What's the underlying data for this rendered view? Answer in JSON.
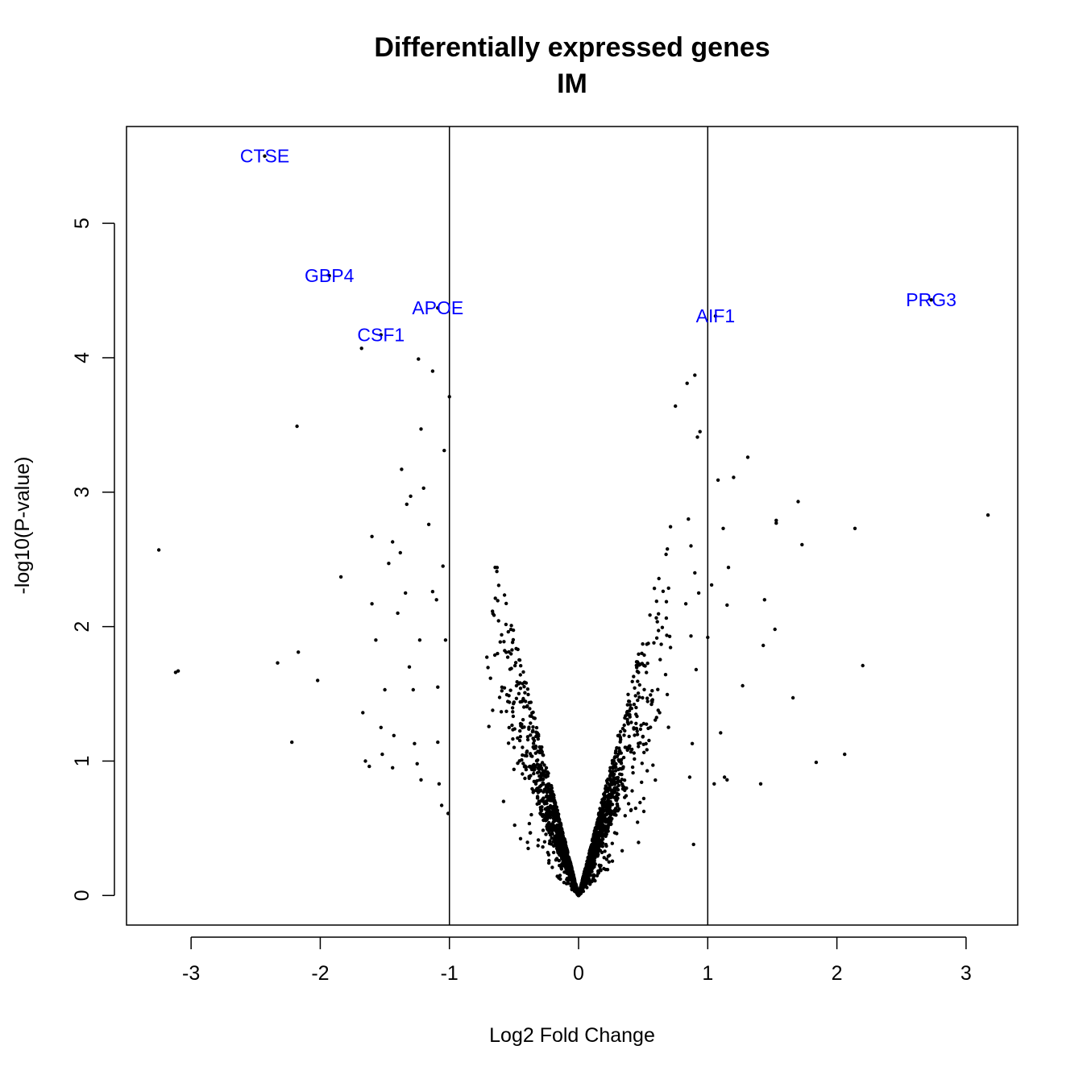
{
  "chart_data": {
    "type": "scatter",
    "title": "Differentially expressed genes",
    "subtitle": "IM",
    "xlabel": "Log2 Fold Change",
    "ylabel": "-log10(P-value)",
    "xlim": [
      -3.5,
      3.4
    ],
    "ylim": [
      -0.22,
      5.72
    ],
    "x_ticks": [
      -3,
      -2,
      -1,
      0,
      1,
      2,
      3
    ],
    "x_tick_labels": [
      "-3",
      "-2",
      "-1",
      "0",
      "1",
      "2",
      "3"
    ],
    "y_ticks": [
      0,
      1,
      2,
      3,
      4,
      5
    ],
    "y_tick_labels": [
      "0",
      "1",
      "2",
      "3",
      "4",
      "5"
    ],
    "grid": false,
    "legend": "none",
    "thresholds_x": [
      -1,
      1
    ],
    "label_color": "#0000ff",
    "point_color": "#000000",
    "labeled_genes": [
      {
        "name": "CTSE",
        "x": -2.43,
        "y": 5.5
      },
      {
        "name": "GBP4",
        "x": -1.93,
        "y": 4.61
      },
      {
        "name": "APOE",
        "x": -1.09,
        "y": 4.37
      },
      {
        "name": "CSF1",
        "x": -1.53,
        "y": 4.17
      },
      {
        "name": "AIF1",
        "x": 1.06,
        "y": 4.31
      },
      {
        "name": "PRG3",
        "x": 2.73,
        "y": 4.43
      }
    ],
    "outlier_points": [
      {
        "x": -3.25,
        "y": 2.57
      },
      {
        "x": -3.1,
        "y": 1.67
      },
      {
        "x": -3.12,
        "y": 1.66
      },
      {
        "x": -2.18,
        "y": 3.49
      },
      {
        "x": -2.33,
        "y": 1.73
      },
      {
        "x": -2.17,
        "y": 1.81
      },
      {
        "x": -2.02,
        "y": 1.6
      },
      {
        "x": -2.22,
        "y": 1.14
      },
      {
        "x": -1.84,
        "y": 2.37
      },
      {
        "x": -1.67,
        "y": 1.36
      },
      {
        "x": -1.65,
        "y": 1.0
      },
      {
        "x": -1.6,
        "y": 2.67
      },
      {
        "x": -1.6,
        "y": 2.17
      },
      {
        "x": -1.57,
        "y": 1.9
      },
      {
        "x": -1.62,
        "y": 0.96
      },
      {
        "x": -1.53,
        "y": 1.25
      },
      {
        "x": -1.5,
        "y": 1.53
      },
      {
        "x": -1.52,
        "y": 1.05
      },
      {
        "x": -1.47,
        "y": 2.47
      },
      {
        "x": -1.44,
        "y": 2.63
      },
      {
        "x": -1.43,
        "y": 1.19
      },
      {
        "x": -1.44,
        "y": 0.95
      },
      {
        "x": -1.4,
        "y": 2.1
      },
      {
        "x": -1.38,
        "y": 2.55
      },
      {
        "x": -1.37,
        "y": 3.17
      },
      {
        "x": -1.34,
        "y": 2.25
      },
      {
        "x": -1.33,
        "y": 2.91
      },
      {
        "x": -1.3,
        "y": 2.97
      },
      {
        "x": -1.31,
        "y": 1.7
      },
      {
        "x": -1.28,
        "y": 1.53
      },
      {
        "x": -1.27,
        "y": 1.13
      },
      {
        "x": -1.25,
        "y": 0.98
      },
      {
        "x": -1.23,
        "y": 1.9
      },
      {
        "x": -1.22,
        "y": 3.47
      },
      {
        "x": -1.22,
        "y": 0.86
      },
      {
        "x": -1.2,
        "y": 3.03
      },
      {
        "x": -1.68,
        "y": 4.07
      },
      {
        "x": -1.24,
        "y": 3.99
      },
      {
        "x": -1.13,
        "y": 3.9
      },
      {
        "x": -1.0,
        "y": 3.71
      },
      {
        "x": -1.04,
        "y": 3.31
      },
      {
        "x": -1.16,
        "y": 2.76
      },
      {
        "x": -1.13,
        "y": 2.26
      },
      {
        "x": -1.1,
        "y": 2.2
      },
      {
        "x": -1.09,
        "y": 1.55
      },
      {
        "x": -1.09,
        "y": 1.14
      },
      {
        "x": -1.08,
        "y": 0.83
      },
      {
        "x": -1.06,
        "y": 0.67
      },
      {
        "x": -1.05,
        "y": 2.45
      },
      {
        "x": -1.03,
        "y": 1.9
      },
      {
        "x": -1.01,
        "y": 0.61
      },
      {
        "x": 0.75,
        "y": 3.64
      },
      {
        "x": 0.84,
        "y": 3.81
      },
      {
        "x": 0.9,
        "y": 3.87
      },
      {
        "x": 0.92,
        "y": 3.41
      },
      {
        "x": 0.94,
        "y": 3.45
      },
      {
        "x": 0.85,
        "y": 2.8
      },
      {
        "x": 0.87,
        "y": 2.6
      },
      {
        "x": 0.9,
        "y": 2.4
      },
      {
        "x": 0.93,
        "y": 2.25
      },
      {
        "x": 0.83,
        "y": 2.17
      },
      {
        "x": 0.87,
        "y": 1.93
      },
      {
        "x": 0.91,
        "y": 1.68
      },
      {
        "x": 0.88,
        "y": 1.13
      },
      {
        "x": 0.86,
        "y": 0.88
      },
      {
        "x": 0.89,
        "y": 0.38
      },
      {
        "x": 1.0,
        "y": 1.92
      },
      {
        "x": 1.03,
        "y": 2.31
      },
      {
        "x": 1.05,
        "y": 0.83
      },
      {
        "x": 1.08,
        "y": 3.09
      },
      {
        "x": 1.1,
        "y": 1.21
      },
      {
        "x": 1.12,
        "y": 2.73
      },
      {
        "x": 1.13,
        "y": 0.88
      },
      {
        "x": 1.15,
        "y": 0.86
      },
      {
        "x": 1.15,
        "y": 2.16
      },
      {
        "x": 1.16,
        "y": 2.44
      },
      {
        "x": 1.2,
        "y": 3.11
      },
      {
        "x": 1.27,
        "y": 1.56
      },
      {
        "x": 1.31,
        "y": 3.26
      },
      {
        "x": 1.41,
        "y": 0.83
      },
      {
        "x": 1.43,
        "y": 1.86
      },
      {
        "x": 1.44,
        "y": 2.2
      },
      {
        "x": 1.52,
        "y": 1.98
      },
      {
        "x": 1.53,
        "y": 2.77
      },
      {
        "x": 1.53,
        "y": 2.79
      },
      {
        "x": 1.66,
        "y": 1.47
      },
      {
        "x": 1.7,
        "y": 2.93
      },
      {
        "x": 1.73,
        "y": 2.61
      },
      {
        "x": 1.84,
        "y": 0.99
      },
      {
        "x": 2.06,
        "y": 1.05
      },
      {
        "x": 2.14,
        "y": 2.73
      },
      {
        "x": 2.2,
        "y": 1.71
      },
      {
        "x": 3.17,
        "y": 2.83
      }
    ],
    "bulk_points_note": ""
  }
}
